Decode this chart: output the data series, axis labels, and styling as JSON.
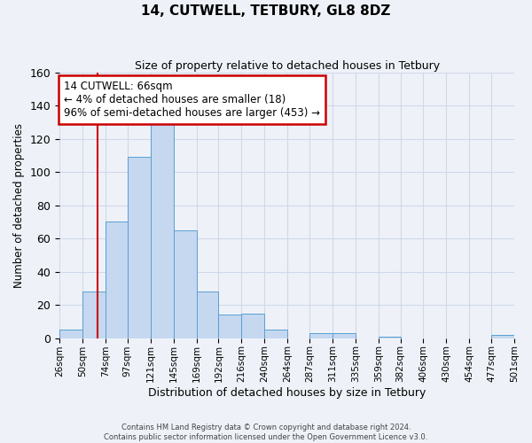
{
  "title1": "14, CUTWELL, TETBURY, GL8 8DZ",
  "title2": "Size of property relative to detached houses in Tetbury",
  "xlabel": "Distribution of detached houses by size in Tetbury",
  "ylabel": "Number of detached properties",
  "footer1": "Contains HM Land Registry data © Crown copyright and database right 2024.",
  "footer2": "Contains public sector information licensed under the Open Government Licence v3.0.",
  "bin_labels": [
    "26sqm",
    "50sqm",
    "74sqm",
    "97sqm",
    "121sqm",
    "145sqm",
    "169sqm",
    "192sqm",
    "216sqm",
    "240sqm",
    "264sqm",
    "287sqm",
    "311sqm",
    "335sqm",
    "359sqm",
    "382sqm",
    "406sqm",
    "430sqm",
    "454sqm",
    "477sqm",
    "501sqm"
  ],
  "bar_heights": [
    5,
    28,
    70,
    109,
    130,
    65,
    28,
    14,
    15,
    5,
    0,
    3,
    3,
    0,
    1,
    0,
    0,
    0,
    0,
    2
  ],
  "bar_color": "#c5d8ef",
  "bar_edge_color": "#5a9fd4",
  "vline_x": 66,
  "vline_color": "#cc0000",
  "annotation_text": "14 CUTWELL: 66sqm\n← 4% of detached houses are smaller (18)\n96% of semi-detached houses are larger (453) →",
  "annotation_box_color": "#ffffff",
  "annotation_box_edge_color": "#cc0000",
  "ylim": [
    0,
    160
  ],
  "bin_edges_sqm": [
    26,
    50,
    74,
    97,
    121,
    145,
    169,
    192,
    216,
    240,
    264,
    287,
    311,
    335,
    359,
    382,
    406,
    430,
    454,
    477,
    501
  ],
  "grid_color": "#d0d8e8",
  "background_color": "#eef2f8",
  "title1_fontsize": 11,
  "title2_fontsize": 9,
  "xlabel_fontsize": 9,
  "ylabel_fontsize": 8.5,
  "yticks": [
    0,
    20,
    40,
    60,
    80,
    100,
    120,
    140,
    160
  ],
  "annotation_fontsize": 8.5
}
